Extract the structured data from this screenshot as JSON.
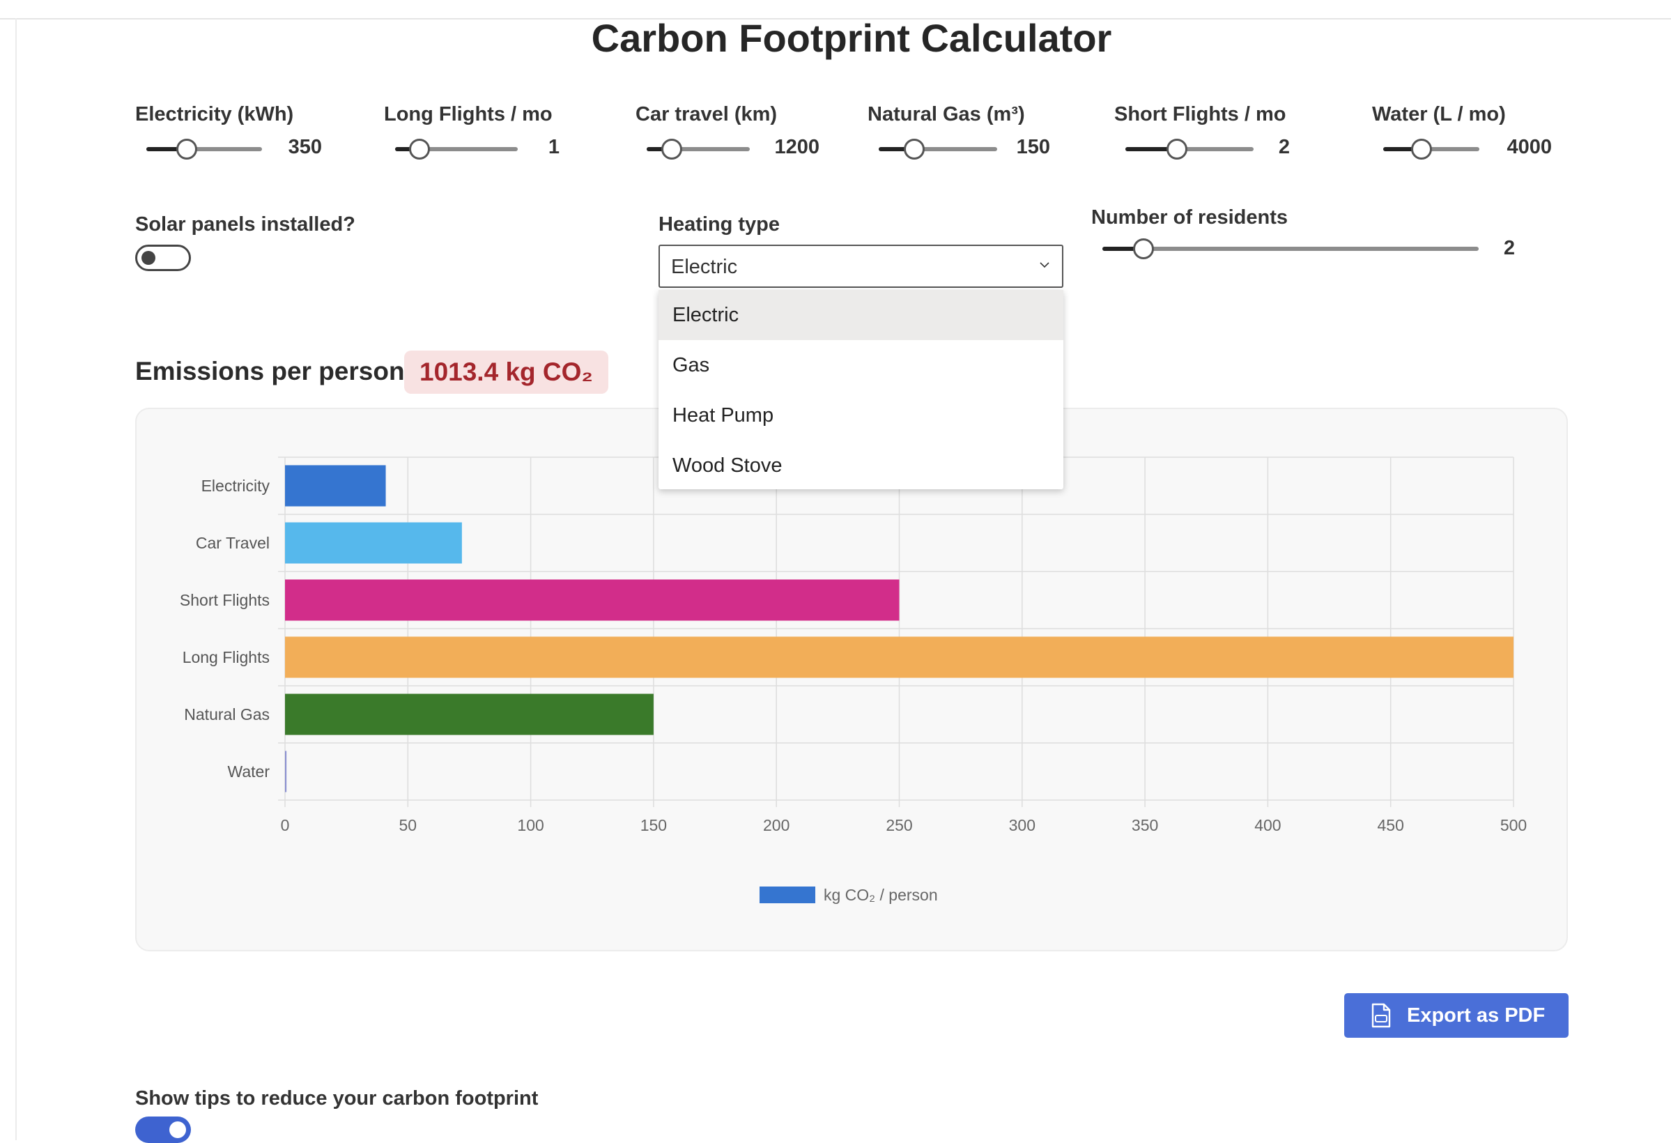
{
  "title": "Carbon Footprint Calculator",
  "sliders": [
    {
      "label": "Electricity (kWh)",
      "value": "350",
      "fraction": 0.35
    },
    {
      "label": "Long Flights / mo",
      "value": "1",
      "fraction": 0.2
    },
    {
      "label": "Car travel (km)",
      "value": "1200",
      "fraction": 0.24
    },
    {
      "label": "Natural Gas (m³)",
      "value": "150",
      "fraction": 0.3
    },
    {
      "label": "Short Flights / mo",
      "value": "2",
      "fraction": 0.4
    },
    {
      "label": "Water (L / mo)",
      "value": "4000",
      "fraction": 0.4
    }
  ],
  "solar": {
    "label": "Solar panels installed?",
    "on": false
  },
  "heating": {
    "label": "Heating type",
    "selected": "Electric",
    "options": [
      "Electric",
      "Gas",
      "Heat Pump",
      "Wood Stove"
    ]
  },
  "residents": {
    "label": "Number of residents",
    "value": "2",
    "fraction": 0.11
  },
  "emissions": {
    "label": "Emissions per person:",
    "value": "1013.4 kg CO₂"
  },
  "chart_data": {
    "type": "bar",
    "orientation": "horizontal",
    "categories": [
      "Electricity",
      "Car Travel",
      "Short Flights",
      "Long Flights",
      "Natural Gas",
      "Water"
    ],
    "values": [
      41,
      72,
      250,
      500,
      150,
      0.6
    ],
    "colors": [
      "#3575d0",
      "#56b8ec",
      "#d22d8a",
      "#f2ae58",
      "#3a7a2a",
      "#8a8fd0"
    ],
    "xlim": [
      0,
      500
    ],
    "xticks": [
      "0",
      "50",
      "100",
      "150",
      "200",
      "250",
      "300",
      "350",
      "400",
      "450",
      "500"
    ],
    "legend": "kg CO₂ / person",
    "legend_position": "bottom",
    "grid": true
  },
  "export_label": "Export as PDF",
  "tips": {
    "label": "Show tips to reduce your carbon footprint",
    "on": true
  }
}
